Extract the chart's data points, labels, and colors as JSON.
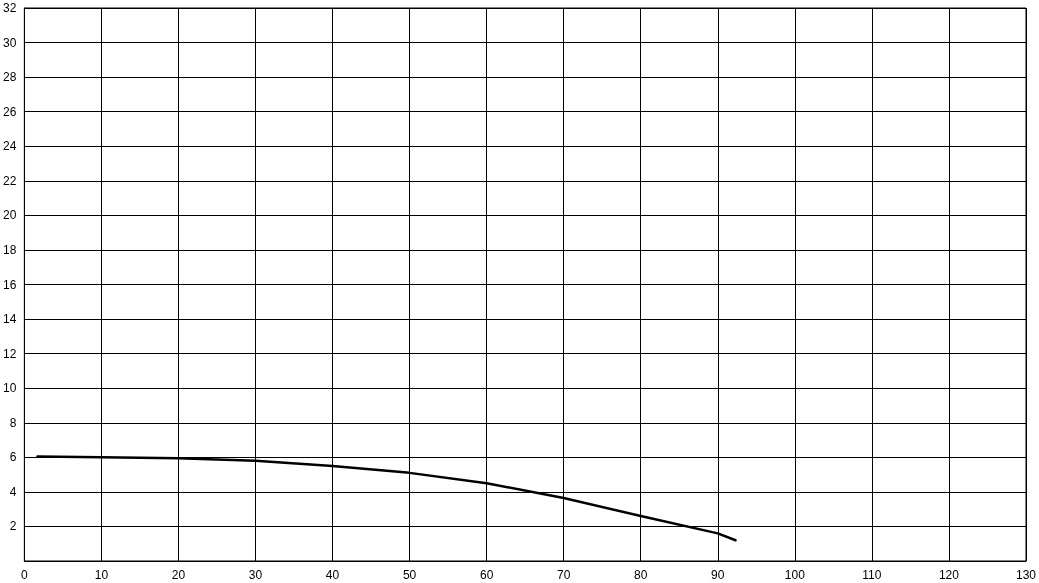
{
  "chart_data": {
    "type": "line",
    "x": [
      1.7,
      10,
      20,
      30,
      40,
      50,
      60,
      70,
      80,
      90,
      92.3
    ],
    "series": [
      {
        "color": "#000000",
        "values": [
          6.05,
          6.0,
          5.95,
          5.8,
          5.5,
          5.1,
          4.5,
          3.65,
          2.6,
          1.6,
          1.2
        ]
      }
    ],
    "xlim": [
      0,
      130
    ],
    "xticks": [
      0,
      10,
      20,
      30,
      40,
      50,
      60,
      70,
      80,
      90,
      100,
      110,
      120,
      130
    ],
    "ylim": [
      0,
      32
    ],
    "yticks": [
      {
        "value": 0,
        "label": null
      },
      2,
      4,
      6,
      8,
      10,
      12,
      14,
      16,
      18,
      20,
      22,
      24,
      26,
      28,
      30,
      32
    ],
    "grid": true,
    "marker": "none",
    "line_style": "solid"
  }
}
